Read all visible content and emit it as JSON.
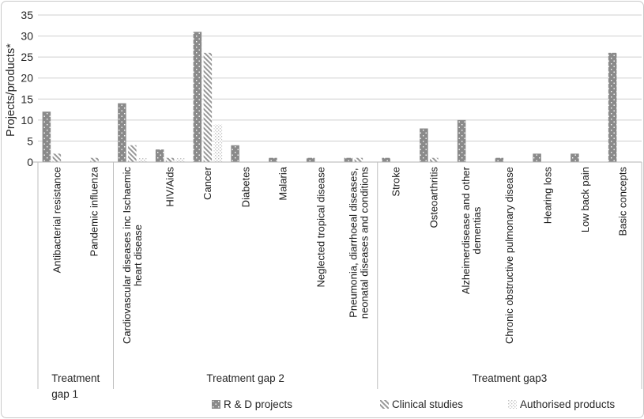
{
  "chart_data": {
    "type": "bar",
    "title": "",
    "xlabel": "",
    "ylabel": "Projects/products*",
    "ylim": [
      0,
      35
    ],
    "yticks": [
      0,
      5,
      10,
      15,
      20,
      25,
      30,
      35
    ],
    "grid": true,
    "legend_position": "bottom",
    "categories": [
      "Antibacterial resistance",
      "Pandemic influenza",
      "Cardiovascular diseases inc Ischaemic\nheart disease",
      "HIV/Aids",
      "Cancer",
      "Diabetes",
      "Malaria",
      "Neglected tropical disease",
      "Pneumonia, diarrhoeal diseases,\nneonatal diseases and conditions",
      "Stroke",
      "Osteoarthritis",
      "Alzheimerdisease and other\ndementias",
      "Chronic obstructive pulmonary disease",
      "Hearing loss",
      "Low back pain",
      "Basic concepts"
    ],
    "series": [
      {
        "name": "R & D projects",
        "pattern": "gray-dotted",
        "color": "#8a8a8a",
        "values": [
          12,
          0,
          14,
          3,
          31,
          4,
          1,
          1,
          1,
          1,
          8,
          10,
          1,
          2,
          2,
          26
        ]
      },
      {
        "name": "Clinical studies",
        "pattern": "diagonal-hatch",
        "color": "#9a9a9a",
        "values": [
          2,
          1,
          4,
          1,
          26,
          0,
          0,
          0,
          1,
          0,
          1,
          0,
          0,
          0,
          0,
          0
        ]
      },
      {
        "name": "Authorised products",
        "pattern": "light-dots",
        "color": "#c4c4c4",
        "values": [
          0,
          0,
          1,
          1,
          9,
          0,
          0,
          0,
          0,
          0,
          0,
          0,
          0,
          0,
          0,
          0
        ]
      }
    ],
    "category_groups": [
      {
        "label": "Treatment\ngap 1",
        "start": 0,
        "end": 2
      },
      {
        "label": "Treatment gap 2",
        "start": 2,
        "end": 9
      },
      {
        "label": "Treatment gap3",
        "start": 9,
        "end": 16
      }
    ]
  },
  "colors": {
    "grid": "#cfcfcf",
    "axis": "#b3b3b3",
    "divider": "#bfbfbf",
    "border": "#c9c9c9",
    "text": "#262626",
    "bar_dot_white": "#ffffff"
  }
}
